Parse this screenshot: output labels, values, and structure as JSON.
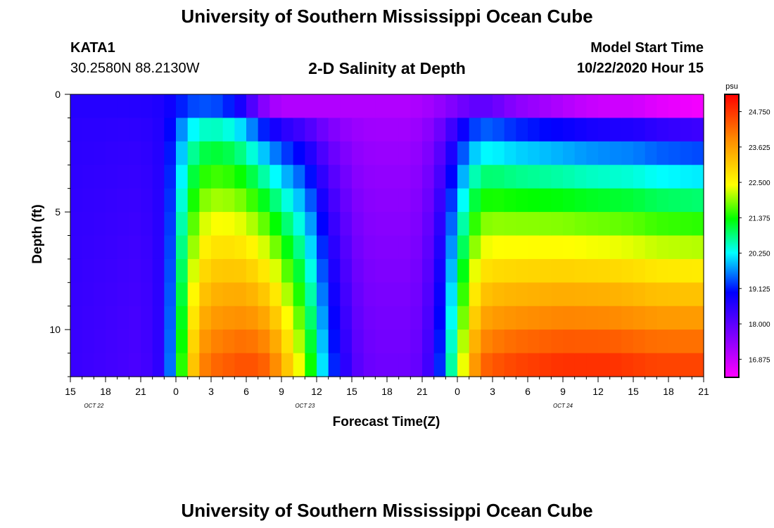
{
  "header": {
    "title": "University of Southern Mississippi Ocean Cube",
    "station": "KATA1",
    "location": "30.2580N 88.2130W",
    "subtitle": "2-D Salinity at Depth",
    "model_start_label": "Model Start Time",
    "model_start_value": "10/22/2020 Hour 15"
  },
  "footer": {
    "title": "University of Southern Mississippi Ocean Cube"
  },
  "chart_data": {
    "type": "heatmap",
    "title": "2-D Salinity at Depth",
    "xlabel": "Forecast Time(Z)",
    "ylabel": "Depth (ft)",
    "x_ticks": [
      "15",
      "18",
      "21",
      "0",
      "3",
      "6",
      "9",
      "12",
      "15",
      "18",
      "21",
      "0",
      "3",
      "6",
      "9",
      "12",
      "15",
      "18",
      "21"
    ],
    "date_labels": [
      {
        "label": "OCT  22",
        "at_hour_index": 2
      },
      {
        "label": "OCT  23",
        "at_hour_index": 20
      },
      {
        "label": "OCT  24",
        "at_hour_index": 42
      }
    ],
    "xlim_hours_from_start": [
      0,
      54
    ],
    "y_ticks": [
      "0",
      "5",
      "10"
    ],
    "ylim_ft": [
      0,
      12
    ],
    "colorbar": {
      "unit": "psu",
      "ticks": [
        "24.750",
        "23.625",
        "22.500",
        "21.375",
        "20.250",
        "19.125",
        "18.000",
        "16.875"
      ],
      "range": [
        16.3,
        25.3
      ]
    },
    "depth_levels_ft": [
      0.5,
      1.5,
      2.5,
      3.5,
      4.5,
      5.5,
      6.5,
      7.5,
      8.5,
      9.5,
      10.5,
      11.5
    ],
    "time_hours_from_start": [
      0,
      6,
      8,
      9,
      10,
      11,
      12,
      13,
      14,
      15,
      16,
      17,
      18,
      20,
      22,
      24,
      25,
      26,
      27,
      28,
      29,
      30,
      31,
      32,
      33,
      34,
      35,
      36,
      37,
      38,
      40,
      42,
      44,
      46,
      48,
      50,
      52,
      54
    ],
    "surface_salinity_psu": [
      18.6,
      18.6,
      18.7,
      19.0,
      19.3,
      19.4,
      19.4,
      19.3,
      19.0,
      18.5,
      17.8,
      17.3,
      17.1,
      17.1,
      17.1,
      17.1,
      17.1,
      17.1,
      17.1,
      17.1,
      17.1,
      17.2,
      17.3,
      17.5,
      17.7,
      17.9,
      18.0,
      17.9,
      17.7,
      17.5,
      17.3,
      17.1,
      16.9,
      16.8,
      16.8,
      16.6,
      16.5,
      16.4
    ],
    "bottom_salinity_psu": [
      18.4,
      18.2,
      18.6,
      20.5,
      22.5,
      23.8,
      24.2,
      24.3,
      24.4,
      24.5,
      24.4,
      24.2,
      23.5,
      22.0,
      19.5,
      18.2,
      17.9,
      17.8,
      17.8,
      17.8,
      17.8,
      18.0,
      18.6,
      19.8,
      21.5,
      23.2,
      24.2,
      24.4,
      24.5,
      24.6,
      24.7,
      24.8,
      24.8,
      24.8,
      24.7,
      24.6,
      24.6,
      24.6
    ]
  }
}
